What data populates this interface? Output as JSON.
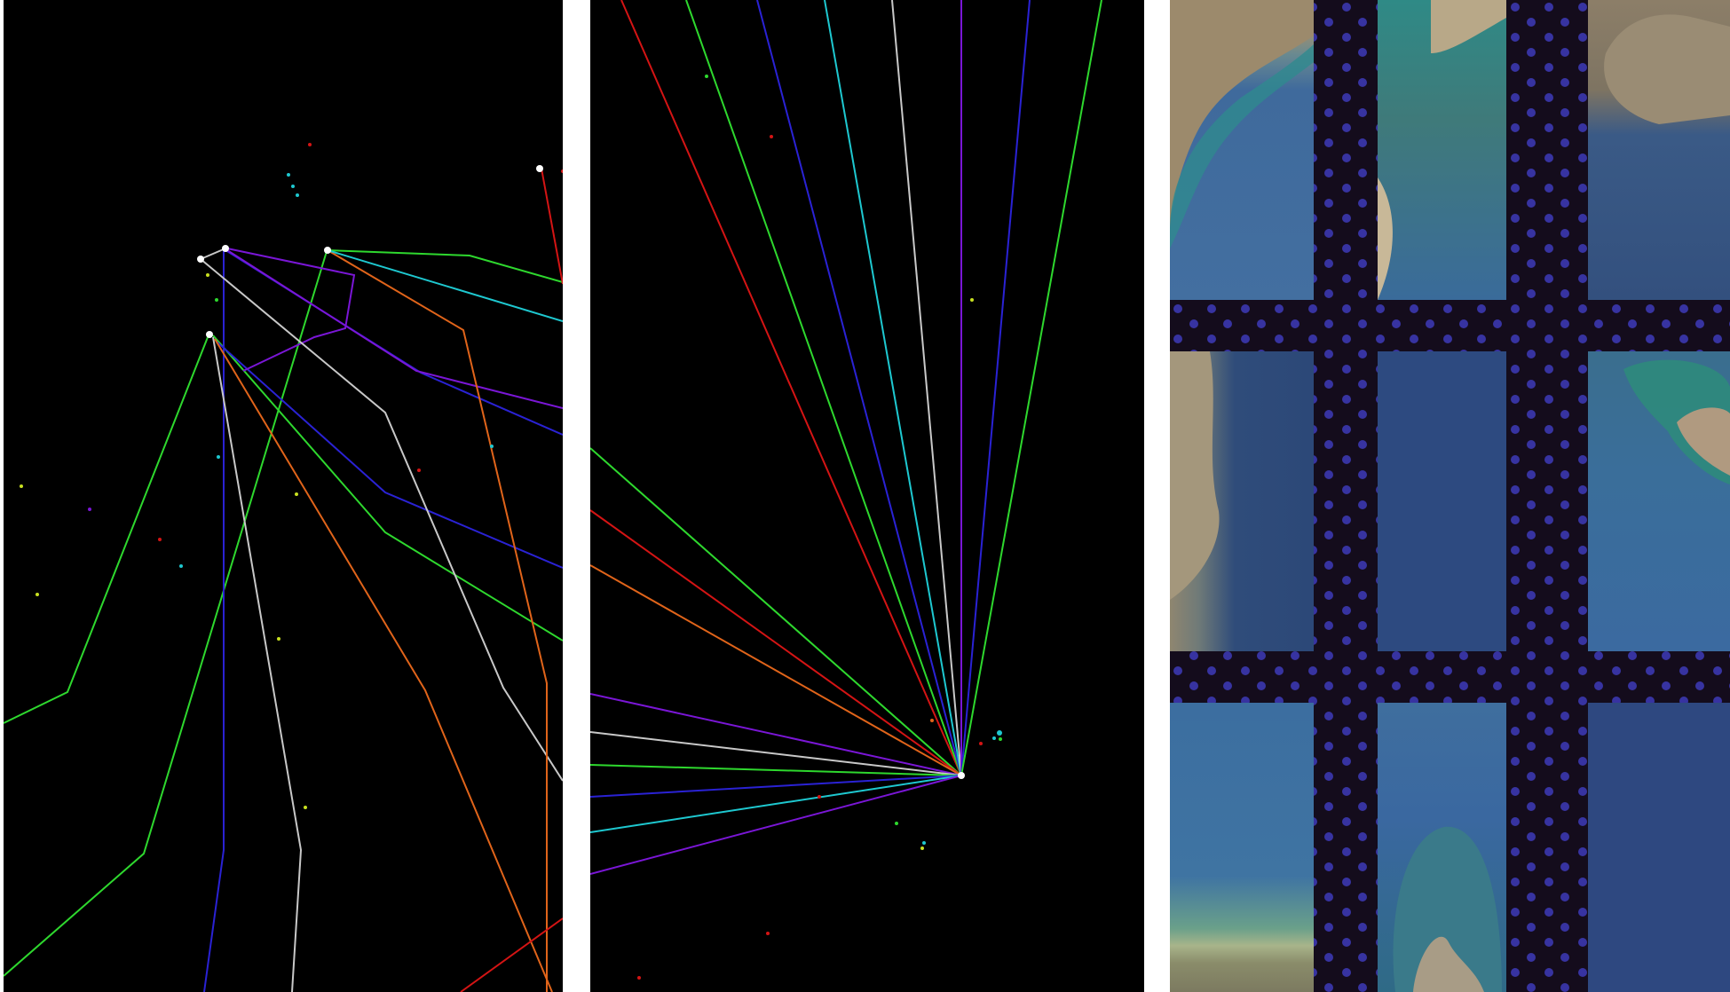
{
  "figure": {
    "panels": [
      {
        "id": "network-left",
        "background": "#000000"
      },
      {
        "id": "network-fan",
        "background": "#000000"
      },
      {
        "id": "satellite-mosaic",
        "background": "#140c1c",
        "dot_color": "#3d3ab8"
      }
    ],
    "line_colors": {
      "green": "#2ed82e",
      "blue": "#2a22d4",
      "purple": "#7a16d6",
      "white": "#c8c8c8",
      "orange": "#e0641a",
      "cyan": "#1ec8d0",
      "red": "#d41414",
      "node": "#ffffff"
    },
    "mosaic_tile_colors": {
      "open-water": "#2f4f86",
      "shallow-water": "#3a6b9a",
      "coast-land": "#9c8a6c",
      "reef": "#2f7c86"
    }
  }
}
